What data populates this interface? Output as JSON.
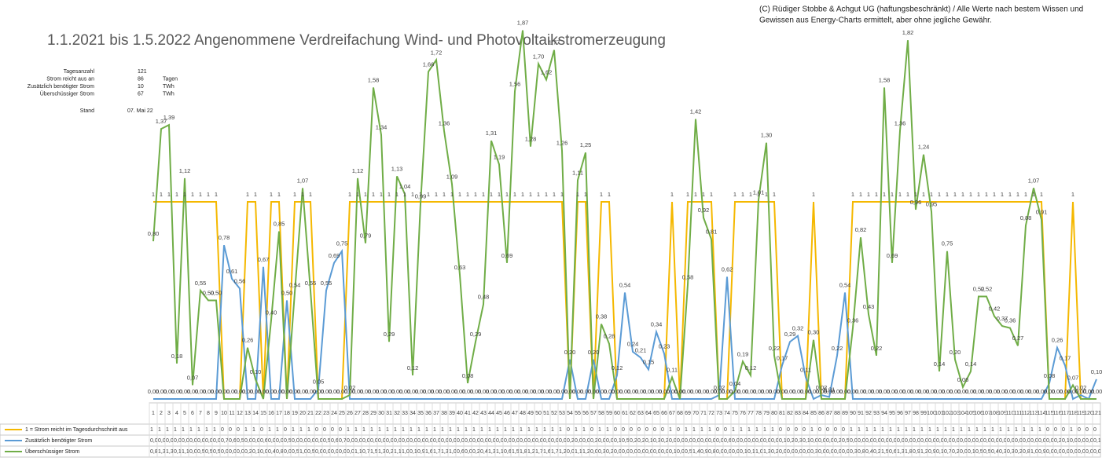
{
  "chart_data": {
    "type": "line",
    "title": "1.1.2021 bis 1.5.2022 Angenommene Verdreifachung Wind- und Photovoltaikstromerzeugung",
    "source_note": [
      "(C) Rüdiger Stobbe & Achgut UG (haftungsbeschränkt) / Alle Werte nach bestem Wissen und",
      "Gewissen aus Energy-Charts ermittelt, aber ohne jegliche Gewähr."
    ],
    "summary": [
      [
        "Tagesanzahl",
        "121",
        ""
      ],
      [
        "Strom reicht aus an",
        "86",
        "Tagen"
      ],
      [
        "Zusätzlich benötigter Strom",
        "10",
        "TWh"
      ],
      [
        "Überschüssiger Strom",
        "67",
        "TWh"
      ]
    ],
    "stand": [
      "Stand",
      "07. Mai 22"
    ],
    "ylim": [
      0,
      2
    ],
    "categories": [
      1,
      2,
      3,
      4,
      5,
      6,
      7,
      8,
      9,
      10,
      11,
      12,
      13,
      14,
      15,
      16,
      17,
      18,
      19,
      20,
      21,
      22,
      23,
      24,
      25,
      26,
      27,
      28,
      29,
      30,
      31,
      32,
      33,
      34,
      35,
      36,
      37,
      38,
      39,
      40,
      41,
      42,
      43,
      44,
      45,
      46,
      47,
      48,
      49,
      50,
      51,
      52,
      53,
      54,
      55,
      56,
      57,
      58,
      59,
      60,
      61,
      62,
      63,
      64,
      65,
      66,
      67,
      68,
      69,
      70,
      71,
      72,
      73,
      74,
      75,
      76,
      77,
      78,
      79,
      80,
      81,
      82,
      83,
      84,
      85,
      86,
      87,
      88,
      89,
      90,
      91,
      92,
      93,
      94,
      95,
      96,
      97,
      98,
      99,
      100,
      101,
      102,
      103,
      104,
      105,
      106,
      107,
      108,
      109,
      110,
      111,
      112,
      113,
      114,
      115,
      116,
      117,
      118,
      119,
      120,
      121
    ],
    "series": [
      {
        "name": "1 = Strom reicht im Tagesdurchschnitt aus",
        "color": "#f5b800",
        "values": [
          1,
          1,
          1,
          1,
          1,
          1,
          1,
          1,
          1,
          0,
          0,
          0,
          1,
          1,
          0,
          1,
          1,
          0,
          1,
          1,
          1,
          0,
          0,
          0,
          0,
          1,
          1,
          1,
          1,
          1,
          1,
          1,
          1,
          1,
          1,
          1,
          1,
          1,
          1,
          1,
          1,
          1,
          1,
          1,
          1,
          1,
          1,
          1,
          1,
          1,
          1,
          1,
          1,
          0,
          1,
          1,
          0,
          1,
          1,
          0,
          0,
          0,
          0,
          0,
          0,
          0,
          1,
          0,
          1,
          1,
          1,
          1,
          0,
          0,
          1,
          1,
          1,
          1,
          1,
          1,
          0,
          0,
          0,
          0,
          1,
          0,
          0,
          0,
          0,
          1,
          1,
          1,
          1,
          1,
          1,
          1,
          1,
          1,
          1,
          1,
          1,
          1,
          1,
          1,
          1,
          1,
          1,
          1,
          1,
          1,
          1,
          1,
          1,
          1,
          0,
          0,
          0,
          1,
          0,
          0,
          0
        ],
        "value_labels": [
          "1",
          "1",
          "1",
          "1",
          "1",
          "1",
          "1",
          "1",
          "1",
          null,
          null,
          null,
          "1",
          "1",
          null,
          "1",
          "1",
          null,
          "1",
          "1",
          "1",
          null,
          null,
          null,
          null,
          "1",
          "1",
          "1",
          "1",
          "1",
          "1",
          "1",
          "1",
          "1",
          "1",
          "1",
          "1",
          "1",
          "1",
          "1",
          "1",
          "1",
          "1",
          "1",
          "1",
          "1",
          "1",
          "1",
          "1",
          "1",
          "1",
          "1",
          "1",
          null,
          "1",
          "1",
          null,
          "1",
          "1",
          null,
          null,
          null,
          null,
          null,
          null,
          null,
          "1",
          null,
          "1",
          "1",
          "1",
          "1",
          null,
          null,
          "1",
          "1",
          "1",
          "1",
          "1",
          "1",
          null,
          null,
          null,
          null,
          "1",
          null,
          null,
          null,
          null,
          "1",
          "1",
          "1",
          "1",
          "1",
          "1",
          "1",
          "1",
          "1",
          "1",
          "1",
          "1",
          "1",
          "1",
          "1",
          "1",
          "1",
          "1",
          "1",
          "1",
          "1",
          "1",
          "1",
          "1",
          "1",
          null,
          null,
          null,
          "1",
          null,
          null,
          null
        ]
      },
      {
        "name": "Zusätzlich benötigter Strom",
        "color": "#5b9bd5",
        "values": [
          0,
          0,
          0,
          0,
          0,
          0,
          0,
          0,
          0,
          0.78,
          0.61,
          0.56,
          0,
          0,
          0.67,
          0,
          0,
          0.5,
          0,
          0,
          0,
          0.05,
          0.55,
          0.69,
          0.75,
          0,
          0,
          0,
          0,
          0,
          0,
          0,
          0,
          0,
          0,
          0,
          0,
          0,
          0,
          0,
          0,
          0,
          0,
          0,
          0,
          0,
          0,
          0,
          0,
          0,
          0,
          0,
          0,
          0.2,
          0,
          0,
          0.2,
          0,
          0,
          0.12,
          0.54,
          0.24,
          0.21,
          0.15,
          0.34,
          0.23,
          0,
          0,
          0,
          0,
          0,
          0,
          0.02,
          0.62,
          0,
          0,
          0,
          0,
          0,
          0,
          0.17,
          0.29,
          0.32,
          0.11,
          0,
          0.02,
          0.01,
          0.22,
          0.54,
          0,
          0,
          0,
          0,
          0,
          0,
          0,
          0,
          0,
          0,
          0,
          0,
          0,
          0,
          0,
          0,
          0,
          0,
          0,
          0,
          0,
          0,
          0,
          0,
          0,
          0.08,
          0.26,
          0.17,
          0,
          0.02,
          0,
          0.1
        ],
        "value_labels": [
          "0,00",
          "0,00",
          "0,00",
          "0,00",
          "0,00",
          "0,00",
          "0,00",
          "0,00",
          "0,00",
          "0,78",
          "0,61",
          "0,56",
          "0,00",
          "0,00",
          "0,67",
          "0,00",
          "0,00",
          "0,50",
          "0,00",
          "0,00",
          "0,00",
          "0,05",
          "0,55",
          "0,69",
          "0,75",
          "0,00",
          "0,00",
          "0,00",
          "0,00",
          "0,00",
          "0,00",
          "0,00",
          "0,00",
          "0,00",
          "0,00",
          "0,00",
          "0,00",
          "0,00",
          "0,00",
          "0,00",
          "0,00",
          "0,00",
          "0,00",
          "0,00",
          "0,00",
          "0,00",
          "0,00",
          "0,00",
          "0,00",
          "0,00",
          "0,00",
          "0,00",
          "0,00",
          "0,20",
          "0,00",
          "0,00",
          "0,20",
          "0,00",
          "0,00",
          "0,12",
          "0,54",
          "0,24",
          "0,21",
          "0,15",
          "0,34",
          "0,23",
          "0,00",
          "0,00",
          "0,00",
          "0,00",
          "0,00",
          "0,00",
          "0,02",
          "0,62",
          "0,00",
          "0,00",
          "0,00",
          "0,00",
          "0,00",
          "0,00",
          "0,17",
          "0,29",
          "0,32",
          "0,11",
          "0,00",
          "0,02",
          "0,01",
          "0,22",
          "0,54",
          "0,00",
          "0,00",
          "0,00",
          "0,00",
          "0,00",
          "0,00",
          "0,00",
          "0,00",
          "0,00",
          "0,00",
          "0,00",
          "0,00",
          "0,00",
          "0,00",
          "0,00",
          "0,00",
          "0,00",
          "0,00",
          "0,00",
          "0,00",
          "0,00",
          "0,00",
          "0,00",
          "0,00",
          "0,00",
          "0,08",
          "0,26",
          "0,17",
          "0,00",
          "0,02",
          "0,00",
          "0,10"
        ]
      },
      {
        "name": "Überschüssiger Strom",
        "color": "#70ad47",
        "values": [
          0.8,
          1.37,
          1.39,
          0.18,
          1.12,
          0.07,
          0.55,
          0.5,
          0.5,
          0,
          0,
          0,
          0.26,
          0.1,
          0,
          0.4,
          0.85,
          0,
          0.54,
          1.07,
          0.55,
          0,
          0,
          0,
          0,
          0.02,
          1.12,
          0.79,
          1.58,
          1.34,
          0.29,
          1.13,
          1.04,
          0.12,
          0.99,
          1.66,
          1.72,
          1.36,
          1.09,
          0.63,
          0.08,
          0.29,
          0.48,
          1.31,
          1.19,
          0.69,
          1.56,
          1.87,
          1.28,
          1.7,
          1.62,
          1.77,
          1.26,
          0,
          1.11,
          1.25,
          0,
          0.38,
          0.28,
          0,
          0,
          0,
          0,
          0,
          0,
          0,
          0.11,
          0,
          0.58,
          1.42,
          0.92,
          0.81,
          0,
          0,
          0.04,
          0.19,
          0.12,
          1.01,
          1.3,
          0.22,
          0,
          0,
          0,
          0,
          0.3,
          0,
          0,
          0,
          0,
          0.36,
          0.82,
          0.43,
          0.22,
          1.58,
          0.69,
          1.36,
          1.82,
          0.96,
          1.24,
          0.95,
          0.14,
          0.75,
          0.2,
          0.06,
          0.14,
          0.52,
          0.52,
          0.42,
          0.37,
          0.36,
          0.27,
          0.88,
          1.07,
          0.91,
          0,
          0,
          0,
          0.07,
          0,
          0,
          0
        ],
        "value_labels": [
          "0,80",
          "1,37",
          "1,39",
          "0,18",
          "1,12",
          "0,07",
          "0,55",
          "0,50",
          "0,50",
          "0,00",
          "0,00",
          "0,00",
          "0,26",
          "0,10",
          "0,00",
          "0,40",
          "0,85",
          "0,00",
          "0,54",
          "1,07",
          "0,55",
          "0,00",
          "0,00",
          "0,00",
          "0,00",
          "0,02",
          "1,12",
          "0,79",
          "1,58",
          "1,34",
          "0,29",
          "1,13",
          "1,04",
          "0,12",
          "0,99",
          "1,66",
          "1,72",
          "1,36",
          "1,09",
          "0,63",
          "0,08",
          "0,29",
          "0,48",
          "1,31",
          "1,19",
          "0,69",
          "1,56",
          "1,87",
          "1,28",
          "1,70",
          "1,62",
          "1,77",
          "1,26",
          "0,00",
          "1,11",
          "1,25",
          "0,00",
          "0,38",
          "0,28",
          "0,00",
          "0,00",
          "0,00",
          "0,00",
          "0,00",
          "0,00",
          "0,00",
          "0,11",
          "0,00",
          "0,58",
          "1,42",
          "0,92",
          "0,81",
          "0,00",
          "0,00",
          "0,04",
          "0,19",
          "0,12",
          "1,01",
          "1,30",
          "0,22",
          "0,00",
          "0,00",
          "0,00",
          "0,00",
          "0,30",
          "0,00",
          "0,00",
          "0,00",
          "0,00",
          "0,36",
          "0,82",
          "0,43",
          "0,22",
          "1,58",
          "0,69",
          "1,36",
          "1,82",
          "0,96",
          "1,24",
          "0,95",
          "0,14",
          "0,75",
          "0,20",
          "0,06",
          "0,14",
          "0,52",
          "0,52",
          "0,42",
          "0,37",
          "0,36",
          "0,27",
          "0,88",
          "1,07",
          "0,91",
          "0,00",
          "0,00",
          "0,00",
          "0,07",
          "0,00",
          "0,00",
          "0,00"
        ]
      }
    ]
  }
}
